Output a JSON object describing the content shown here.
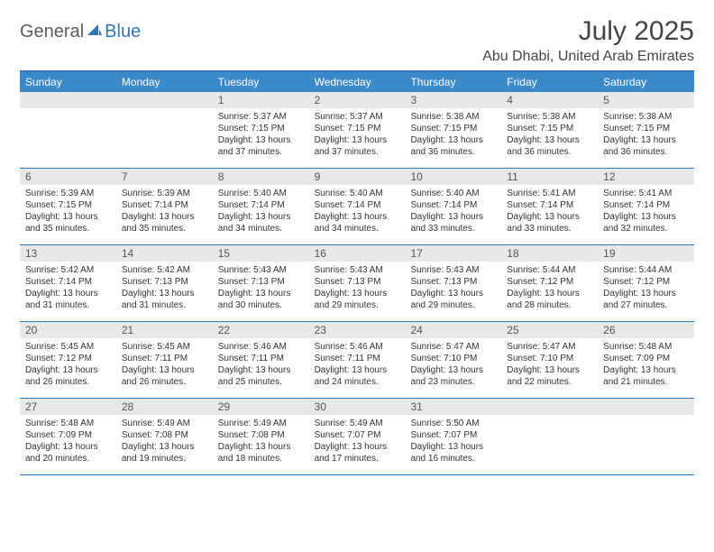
{
  "logo": {
    "word1": "General",
    "word2": "Blue",
    "icon_color": "#2f78b7"
  },
  "title": "July 2025",
  "location": "Abu Dhabi, United Arab Emirates",
  "colors": {
    "header_bar": "#3b89c9",
    "border": "#2f78b7",
    "daynum_bg": "#e8e8e8",
    "text": "#333333"
  },
  "day_names": [
    "Sunday",
    "Monday",
    "Tuesday",
    "Wednesday",
    "Thursday",
    "Friday",
    "Saturday"
  ],
  "weeks": [
    [
      {
        "n": "",
        "sr": "",
        "ss": "",
        "dl": ""
      },
      {
        "n": "",
        "sr": "",
        "ss": "",
        "dl": ""
      },
      {
        "n": "1",
        "sr": "Sunrise: 5:37 AM",
        "ss": "Sunset: 7:15 PM",
        "dl": "Daylight: 13 hours and 37 minutes."
      },
      {
        "n": "2",
        "sr": "Sunrise: 5:37 AM",
        "ss": "Sunset: 7:15 PM",
        "dl": "Daylight: 13 hours and 37 minutes."
      },
      {
        "n": "3",
        "sr": "Sunrise: 5:38 AM",
        "ss": "Sunset: 7:15 PM",
        "dl": "Daylight: 13 hours and 36 minutes."
      },
      {
        "n": "4",
        "sr": "Sunrise: 5:38 AM",
        "ss": "Sunset: 7:15 PM",
        "dl": "Daylight: 13 hours and 36 minutes."
      },
      {
        "n": "5",
        "sr": "Sunrise: 5:38 AM",
        "ss": "Sunset: 7:15 PM",
        "dl": "Daylight: 13 hours and 36 minutes."
      }
    ],
    [
      {
        "n": "6",
        "sr": "Sunrise: 5:39 AM",
        "ss": "Sunset: 7:15 PM",
        "dl": "Daylight: 13 hours and 35 minutes."
      },
      {
        "n": "7",
        "sr": "Sunrise: 5:39 AM",
        "ss": "Sunset: 7:14 PM",
        "dl": "Daylight: 13 hours and 35 minutes."
      },
      {
        "n": "8",
        "sr": "Sunrise: 5:40 AM",
        "ss": "Sunset: 7:14 PM",
        "dl": "Daylight: 13 hours and 34 minutes."
      },
      {
        "n": "9",
        "sr": "Sunrise: 5:40 AM",
        "ss": "Sunset: 7:14 PM",
        "dl": "Daylight: 13 hours and 34 minutes."
      },
      {
        "n": "10",
        "sr": "Sunrise: 5:40 AM",
        "ss": "Sunset: 7:14 PM",
        "dl": "Daylight: 13 hours and 33 minutes."
      },
      {
        "n": "11",
        "sr": "Sunrise: 5:41 AM",
        "ss": "Sunset: 7:14 PM",
        "dl": "Daylight: 13 hours and 33 minutes."
      },
      {
        "n": "12",
        "sr": "Sunrise: 5:41 AM",
        "ss": "Sunset: 7:14 PM",
        "dl": "Daylight: 13 hours and 32 minutes."
      }
    ],
    [
      {
        "n": "13",
        "sr": "Sunrise: 5:42 AM",
        "ss": "Sunset: 7:14 PM",
        "dl": "Daylight: 13 hours and 31 minutes."
      },
      {
        "n": "14",
        "sr": "Sunrise: 5:42 AM",
        "ss": "Sunset: 7:13 PM",
        "dl": "Daylight: 13 hours and 31 minutes."
      },
      {
        "n": "15",
        "sr": "Sunrise: 5:43 AM",
        "ss": "Sunset: 7:13 PM",
        "dl": "Daylight: 13 hours and 30 minutes."
      },
      {
        "n": "16",
        "sr": "Sunrise: 5:43 AM",
        "ss": "Sunset: 7:13 PM",
        "dl": "Daylight: 13 hours and 29 minutes."
      },
      {
        "n": "17",
        "sr": "Sunrise: 5:43 AM",
        "ss": "Sunset: 7:13 PM",
        "dl": "Daylight: 13 hours and 29 minutes."
      },
      {
        "n": "18",
        "sr": "Sunrise: 5:44 AM",
        "ss": "Sunset: 7:12 PM",
        "dl": "Daylight: 13 hours and 28 minutes."
      },
      {
        "n": "19",
        "sr": "Sunrise: 5:44 AM",
        "ss": "Sunset: 7:12 PM",
        "dl": "Daylight: 13 hours and 27 minutes."
      }
    ],
    [
      {
        "n": "20",
        "sr": "Sunrise: 5:45 AM",
        "ss": "Sunset: 7:12 PM",
        "dl": "Daylight: 13 hours and 26 minutes."
      },
      {
        "n": "21",
        "sr": "Sunrise: 5:45 AM",
        "ss": "Sunset: 7:11 PM",
        "dl": "Daylight: 13 hours and 26 minutes."
      },
      {
        "n": "22",
        "sr": "Sunrise: 5:46 AM",
        "ss": "Sunset: 7:11 PM",
        "dl": "Daylight: 13 hours and 25 minutes."
      },
      {
        "n": "23",
        "sr": "Sunrise: 5:46 AM",
        "ss": "Sunset: 7:11 PM",
        "dl": "Daylight: 13 hours and 24 minutes."
      },
      {
        "n": "24",
        "sr": "Sunrise: 5:47 AM",
        "ss": "Sunset: 7:10 PM",
        "dl": "Daylight: 13 hours and 23 minutes."
      },
      {
        "n": "25",
        "sr": "Sunrise: 5:47 AM",
        "ss": "Sunset: 7:10 PM",
        "dl": "Daylight: 13 hours and 22 minutes."
      },
      {
        "n": "26",
        "sr": "Sunrise: 5:48 AM",
        "ss": "Sunset: 7:09 PM",
        "dl": "Daylight: 13 hours and 21 minutes."
      }
    ],
    [
      {
        "n": "27",
        "sr": "Sunrise: 5:48 AM",
        "ss": "Sunset: 7:09 PM",
        "dl": "Daylight: 13 hours and 20 minutes."
      },
      {
        "n": "28",
        "sr": "Sunrise: 5:49 AM",
        "ss": "Sunset: 7:08 PM",
        "dl": "Daylight: 13 hours and 19 minutes."
      },
      {
        "n": "29",
        "sr": "Sunrise: 5:49 AM",
        "ss": "Sunset: 7:08 PM",
        "dl": "Daylight: 13 hours and 18 minutes."
      },
      {
        "n": "30",
        "sr": "Sunrise: 5:49 AM",
        "ss": "Sunset: 7:07 PM",
        "dl": "Daylight: 13 hours and 17 minutes."
      },
      {
        "n": "31",
        "sr": "Sunrise: 5:50 AM",
        "ss": "Sunset: 7:07 PM",
        "dl": "Daylight: 13 hours and 16 minutes."
      },
      {
        "n": "",
        "sr": "",
        "ss": "",
        "dl": ""
      },
      {
        "n": "",
        "sr": "",
        "ss": "",
        "dl": ""
      }
    ]
  ]
}
